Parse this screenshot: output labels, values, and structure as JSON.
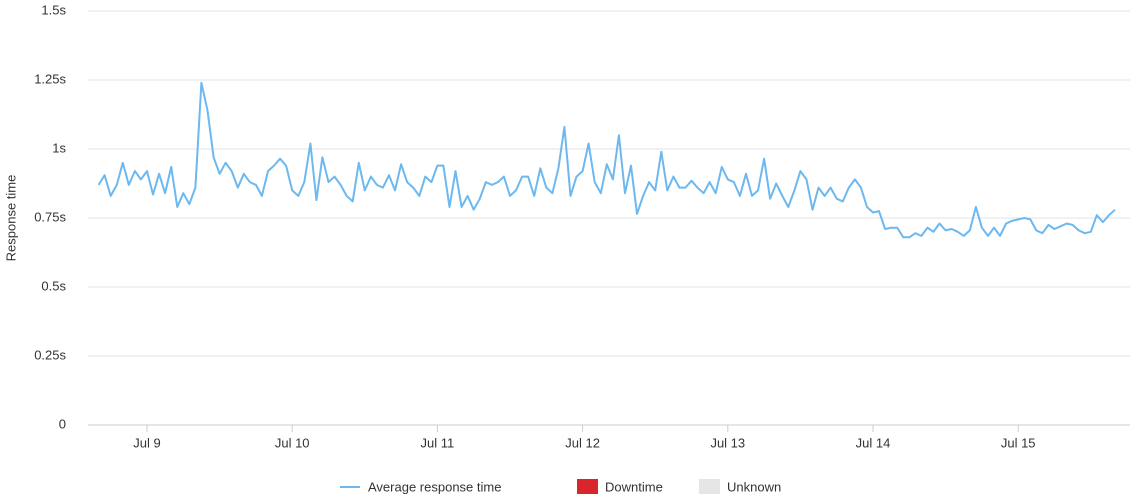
{
  "chart_data": {
    "type": "line",
    "y_label": "Response time",
    "categories": [
      null,
      null,
      null,
      null,
      null,
      null,
      null,
      null,
      "Jul 9",
      null,
      null,
      null,
      null,
      null,
      null,
      null,
      null,
      null,
      null,
      null,
      null,
      null,
      null,
      null,
      null,
      null,
      null,
      null,
      null,
      null,
      null,
      null,
      "Jul 10",
      null,
      null,
      null,
      null,
      null,
      null,
      null,
      null,
      null,
      null,
      null,
      null,
      null,
      null,
      null,
      null,
      null,
      null,
      null,
      null,
      null,
      null,
      null,
      "Jul 11",
      null,
      null,
      null,
      null,
      null,
      null,
      null,
      null,
      null,
      null,
      null,
      null,
      null,
      null,
      null,
      null,
      null,
      null,
      null,
      null,
      null,
      null,
      null,
      "Jul 12",
      null,
      null,
      null,
      null,
      null,
      null,
      null,
      null,
      null,
      null,
      null,
      null,
      null,
      null,
      null,
      null,
      null,
      null,
      null,
      null,
      null,
      null,
      null,
      "Jul 13",
      null,
      null,
      null,
      null,
      null,
      null,
      null,
      null,
      null,
      null,
      null,
      null,
      null,
      null,
      null,
      null,
      null,
      null,
      null,
      null,
      null,
      null,
      null,
      "Jul 14",
      null,
      null,
      null,
      null,
      null,
      null,
      null,
      null,
      null,
      null,
      null,
      null,
      null,
      null,
      null,
      null,
      null,
      null,
      null,
      null,
      null,
      null,
      null,
      "Jul 15",
      null,
      null,
      null,
      null,
      null,
      null,
      null,
      null,
      null,
      null,
      null,
      null,
      null,
      null,
      null,
      null
    ],
    "series": [
      {
        "name": "Average response time",
        "color": "#6cb8ef",
        "values": [
          0.87,
          0.905,
          0.83,
          0.87,
          0.95,
          0.87,
          0.92,
          0.89,
          0.92,
          0.835,
          0.91,
          0.84,
          0.935,
          0.79,
          0.84,
          0.8,
          0.86,
          1.24,
          1.14,
          0.97,
          0.91,
          0.95,
          0.92,
          0.86,
          0.91,
          0.88,
          0.87,
          0.83,
          0.92,
          0.94,
          0.965,
          0.94,
          0.85,
          0.83,
          0.88,
          1.02,
          0.815,
          0.97,
          0.88,
          0.9,
          0.87,
          0.83,
          0.81,
          0.95,
          0.85,
          0.9,
          0.87,
          0.86,
          0.905,
          0.85,
          0.945,
          0.88,
          0.86,
          0.83,
          0.9,
          0.88,
          0.94,
          0.94,
          0.79,
          0.92,
          0.79,
          0.83,
          0.78,
          0.82,
          0.88,
          0.87,
          0.88,
          0.9,
          0.83,
          0.85,
          0.9,
          0.9,
          0.83,
          0.93,
          0.86,
          0.84,
          0.93,
          1.08,
          0.83,
          0.9,
          0.92,
          1.02,
          0.88,
          0.84,
          0.945,
          0.89,
          1.05,
          0.84,
          0.94,
          0.765,
          0.83,
          0.88,
          0.85,
          0.99,
          0.85,
          0.9,
          0.86,
          0.86,
          0.885,
          0.86,
          0.84,
          0.88,
          0.84,
          0.935,
          0.89,
          0.88,
          0.83,
          0.91,
          0.83,
          0.85,
          0.965,
          0.82,
          0.875,
          0.83,
          0.79,
          0.85,
          0.92,
          0.89,
          0.78,
          0.86,
          0.83,
          0.86,
          0.82,
          0.81,
          0.86,
          0.89,
          0.86,
          0.79,
          0.77,
          0.775,
          0.71,
          0.715,
          0.715,
          0.68,
          0.68,
          0.695,
          0.685,
          0.715,
          0.7,
          0.73,
          0.705,
          0.71,
          0.7,
          0.685,
          0.705,
          0.79,
          0.715,
          0.685,
          0.715,
          0.685,
          0.73,
          0.74,
          0.745,
          0.75,
          0.745,
          0.705,
          0.695,
          0.725,
          0.71,
          0.72,
          0.73,
          0.725,
          0.705,
          0.695,
          0.7,
          0.76,
          0.735,
          0.76,
          0.78
        ]
      }
    ],
    "status_legend": [
      {
        "name": "Downtime",
        "color": "#d9262b"
      },
      {
        "name": "Unknown",
        "color": "#e6e6e6"
      }
    ],
    "ylim": [
      0,
      1.5
    ],
    "yticks": [
      0,
      {
        "value": 0.25,
        "label": "0.25s"
      },
      {
        "value": 0.5,
        "label": "0.5s"
      },
      {
        "value": 0.75,
        "label": "0.75s"
      },
      {
        "value": 1,
        "label": "1s"
      },
      {
        "value": 1.25,
        "label": "1.25s"
      },
      {
        "value": 1.5,
        "label": "1.5s"
      }
    ],
    "grid": true
  }
}
